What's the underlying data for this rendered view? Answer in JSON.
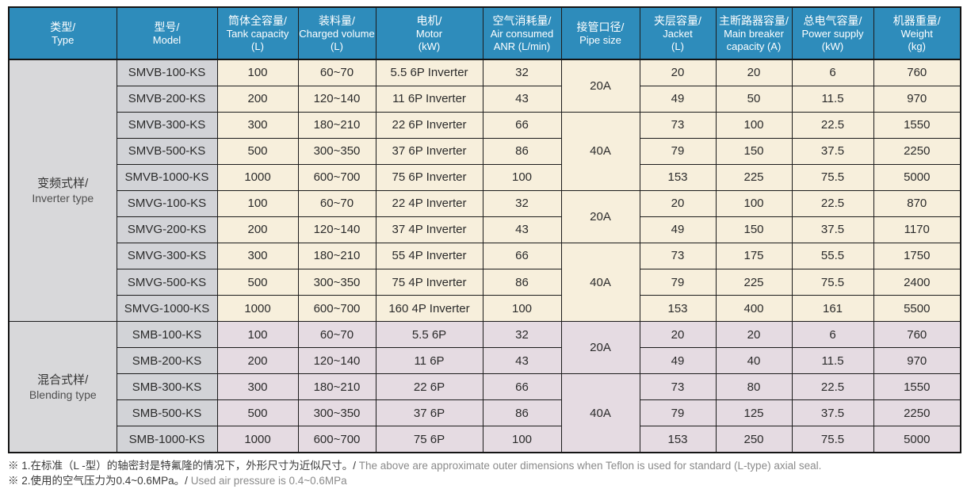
{
  "colors": {
    "header_bg": "#2e8cbb",
    "header_text": "#ffffff",
    "type_col_bg": "#d8d8da",
    "model_col_bg": "#d2d3d7",
    "inverter_cell_bg": "#f7efdc",
    "blending_cell_bg": "#e5dbe2",
    "border": "#1c1c1c"
  },
  "table": {
    "columns": [
      {
        "zh": "类型/",
        "en": "Type",
        "sub": ""
      },
      {
        "zh": "型号/",
        "en": "Model",
        "sub": ""
      },
      {
        "zh": "筒体全容量/",
        "en": "Tank capacity",
        "sub": "(L)"
      },
      {
        "zh": "装料量/",
        "en": "Charged volume",
        "sub": "(L)"
      },
      {
        "zh": "电机/",
        "en": "Motor",
        "sub": "(kW)"
      },
      {
        "zh": "空气消耗量/",
        "en": "Air consumed",
        "sub": "ANR (L/min)"
      },
      {
        "zh": "接管口径/",
        "en": "Pipe size",
        "sub": ""
      },
      {
        "zh": "夹层容量/",
        "en": "Jacket",
        "sub": "(L)"
      },
      {
        "zh": "主断路器容量/",
        "en": "Main breaker",
        "sub": "capacity (A)"
      },
      {
        "zh": "总电气容量/",
        "en": "Power supply",
        "sub": "(kW)"
      },
      {
        "zh": "机器重量/",
        "en": "Weight",
        "sub": "(kg)"
      }
    ],
    "groups": [
      {
        "type_zh": "变频式样/",
        "type_en": "Inverter type",
        "theme": "cream",
        "rows": [
          {
            "model": "SMVB-100-KS",
            "tank": "100",
            "charged": "60~70",
            "motor": "5.5 6P Inverter",
            "air": "32",
            "pipe": {
              "label": "20A",
              "rowspan": 2
            },
            "jacket": "20",
            "breaker": "20",
            "power": "6",
            "weight": "760"
          },
          {
            "model": "SMVB-200-KS",
            "tank": "200",
            "charged": "120~140",
            "motor": "11 6P Inverter",
            "air": "43",
            "pipe": null,
            "jacket": "49",
            "breaker": "50",
            "power": "11.5",
            "weight": "970"
          },
          {
            "model": "SMVB-300-KS",
            "tank": "300",
            "charged": "180~210",
            "motor": "22 6P Inverter",
            "air": "66",
            "pipe": {
              "label": "40A",
              "rowspan": 3
            },
            "jacket": "73",
            "breaker": "100",
            "power": "22.5",
            "weight": "1550"
          },
          {
            "model": "SMVB-500-KS",
            "tank": "500",
            "charged": "300~350",
            "motor": "37 6P Inverter",
            "air": "86",
            "pipe": null,
            "jacket": "79",
            "breaker": "150",
            "power": "37.5",
            "weight": "2250"
          },
          {
            "model": "SMVB-1000-KS",
            "tank": "1000",
            "charged": "600~700",
            "motor": "75 6P Inverter",
            "air": "100",
            "pipe": null,
            "jacket": "153",
            "breaker": "225",
            "power": "75.5",
            "weight": "5000"
          },
          {
            "model": "SMVG-100-KS",
            "tank": "100",
            "charged": "60~70",
            "motor": "22 4P Inverter",
            "air": "32",
            "pipe": {
              "label": "20A",
              "rowspan": 2
            },
            "jacket": "20",
            "breaker": "100",
            "power": "22.5",
            "weight": "870"
          },
          {
            "model": "SMVG-200-KS",
            "tank": "200",
            "charged": "120~140",
            "motor": "37 4P Inverter",
            "air": "43",
            "pipe": null,
            "jacket": "49",
            "breaker": "150",
            "power": "37.5",
            "weight": "1170"
          },
          {
            "model": "SMVG-300-KS",
            "tank": "300",
            "charged": "180~210",
            "motor": "55 4P Inverter",
            "air": "66",
            "pipe": {
              "label": "40A",
              "rowspan": 3
            },
            "jacket": "73",
            "breaker": "175",
            "power": "55.5",
            "weight": "1750"
          },
          {
            "model": "SMVG-500-KS",
            "tank": "500",
            "charged": "300~350",
            "motor": "75 4P Inverter",
            "air": "86",
            "pipe": null,
            "jacket": "79",
            "breaker": "225",
            "power": "75.5",
            "weight": "2400"
          },
          {
            "model": "SMVG-1000-KS",
            "tank": "1000",
            "charged": "600~700",
            "motor": "160 4P Inverter",
            "air": "100",
            "pipe": null,
            "jacket": "153",
            "breaker": "400",
            "power": "161",
            "weight": "5500"
          }
        ]
      },
      {
        "type_zh": "混合式样/",
        "type_en": "Blending type",
        "theme": "pink",
        "rows": [
          {
            "model": "SMB-100-KS",
            "tank": "100",
            "charged": "60~70",
            "motor": "5.5 6P",
            "air": "32",
            "pipe": {
              "label": "20A",
              "rowspan": 2
            },
            "jacket": "20",
            "breaker": "20",
            "power": "6",
            "weight": "760"
          },
          {
            "model": "SMB-200-KS",
            "tank": "200",
            "charged": "120~140",
            "motor": "11 6P",
            "air": "43",
            "pipe": null,
            "jacket": "49",
            "breaker": "40",
            "power": "11.5",
            "weight": "970"
          },
          {
            "model": "SMB-300-KS",
            "tank": "300",
            "charged": "180~210",
            "motor": "22 6P",
            "air": "66",
            "pipe": {
              "label": "40A",
              "rowspan": 3
            },
            "jacket": "73",
            "breaker": "80",
            "power": "22.5",
            "weight": "1550"
          },
          {
            "model": "SMB-500-KS",
            "tank": "500",
            "charged": "300~350",
            "motor": "37 6P",
            "air": "86",
            "pipe": null,
            "jacket": "79",
            "breaker": "125",
            "power": "37.5",
            "weight": "2250"
          },
          {
            "model": "SMB-1000-KS",
            "tank": "1000",
            "charged": "600~700",
            "motor": "75 6P",
            "air": "100",
            "pipe": null,
            "jacket": "153",
            "breaker": "250",
            "power": "75.5",
            "weight": "5000"
          }
        ]
      }
    ]
  },
  "notes": [
    {
      "zh": "※ 1.在标准（L -型）的轴密封是特氟隆的情况下，外形尺寸为近似尺寸。/",
      "en": "The above are approximate outer dimensions when Teflon is used for standard (L-type) axial seal."
    },
    {
      "zh": "※ 2.使用的空气压力为0.4~0.6MPa。/",
      "en": "Used air pressure is 0.4~0.6MPa"
    }
  ]
}
